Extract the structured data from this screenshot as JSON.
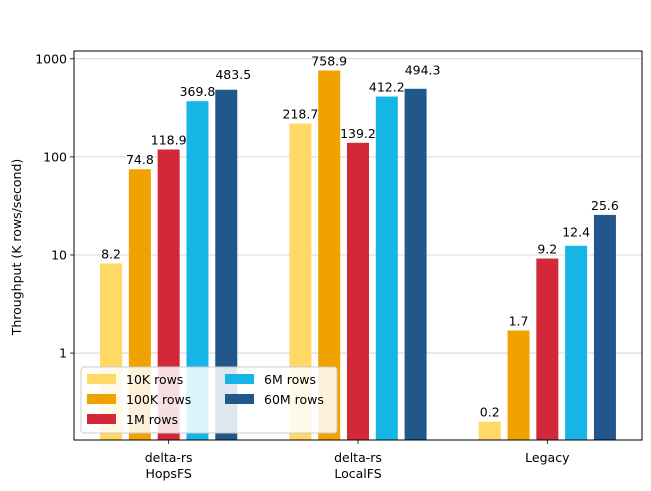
{
  "chart_data": {
    "type": "bar",
    "title": "",
    "xlabel": "",
    "ylabel": "Throughput (K rows/second)",
    "y_scale": "log",
    "ylim": [
      0.13,
      1200
    ],
    "yticks": [
      1,
      10,
      100,
      1000
    ],
    "ytick_labels": [
      "1",
      "10",
      "100",
      "1000"
    ],
    "grid": "horizontal major lines",
    "legend_position": "lower-left",
    "categories": [
      [
        "delta-rs",
        "HopsFS"
      ],
      [
        "delta-rs",
        "LocalFS"
      ],
      [
        "Legacy"
      ]
    ],
    "series": [
      {
        "name": "10K rows",
        "color": "#FFD865",
        "values": [
          8.2,
          218.7,
          0.2
        ],
        "labels": [
          "8.2",
          "218.7",
          "0.2"
        ]
      },
      {
        "name": "100K rows",
        "color": "#F0A200",
        "values": [
          74.8,
          758.9,
          1.7
        ],
        "labels": [
          "74.8",
          "758.9",
          "1.7"
        ]
      },
      {
        "name": "1M rows",
        "color": "#D2283A",
        "values": [
          118.9,
          139.2,
          9.2
        ],
        "labels": [
          "118.9",
          "139.2",
          "9.2"
        ]
      },
      {
        "name": "6M rows",
        "color": "#15B6E5",
        "values": [
          369.8,
          412.2,
          12.4
        ],
        "labels": [
          "369.8",
          "412.2",
          "12.4"
        ]
      },
      {
        "name": "60M rows",
        "color": "#22578C",
        "values": [
          483.5,
          494.3,
          25.6
        ],
        "labels": [
          "483.5",
          "494.3",
          "25.6"
        ]
      }
    ]
  }
}
